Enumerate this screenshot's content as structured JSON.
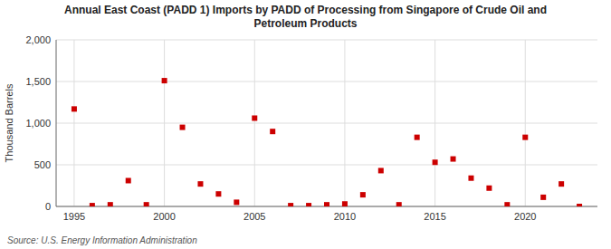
{
  "chart_data": {
    "type": "scatter",
    "title": "Annual East Coast (PADD 1) Imports by PADD of Processing from Singapore of Crude Oil and\nPetroleum Products",
    "ylabel": "Thousand Barrels",
    "annotations": [
      "Source: U.S. Energy Information Administration"
    ],
    "x": [
      1995,
      1996,
      1997,
      1998,
      1999,
      2000,
      2001,
      2002,
      2003,
      2004,
      2005,
      2006,
      2007,
      2008,
      2009,
      2010,
      2011,
      2012,
      2013,
      2014,
      2015,
      2016,
      2017,
      2018,
      2019,
      2020,
      2021,
      2022,
      2023
    ],
    "values": [
      1170,
      10,
      20,
      310,
      20,
      1510,
      950,
      270,
      150,
      50,
      1060,
      900,
      10,
      10,
      20,
      30,
      140,
      430,
      20,
      830,
      530,
      570,
      340,
      220,
      20,
      830,
      110,
      270,
      0
    ],
    "color": "#cc0000",
    "marker": "square",
    "xlim": [
      1994,
      2024
    ],
    "xticks": [
      1995,
      2000,
      2005,
      2010,
      2015,
      2020
    ],
    "ylim": [
      0,
      2000
    ],
    "yticks": [
      0,
      500,
      {
        "value": 1000,
        "label": "1,000"
      },
      {
        "value": 1500,
        "label": "1,500"
      },
      {
        "value": 2000,
        "label": "2,000"
      }
    ],
    "grid": true
  }
}
